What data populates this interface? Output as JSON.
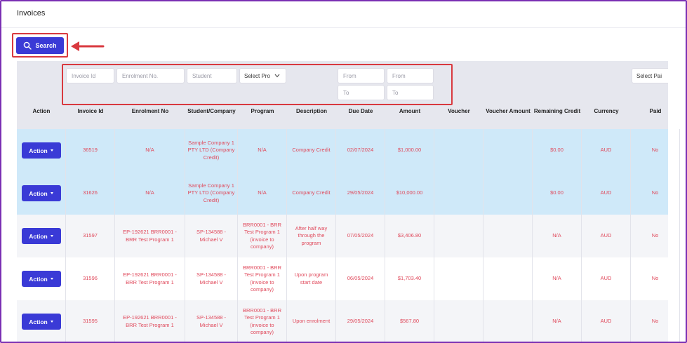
{
  "page": {
    "title": "Invoices"
  },
  "search": {
    "label": "Search"
  },
  "filters": {
    "invoice_id": "Invoice Id",
    "enrolment_no": "Enrolment No.",
    "student": "Student",
    "program": "Select Pro",
    "due_from": "From",
    "due_to": "To",
    "amount_from": "From",
    "amount_to": "To",
    "paid": "Select Pai"
  },
  "columns": [
    "Action",
    "Invoice Id",
    "Enrolment No",
    "Student/Company",
    "Program",
    "Description",
    "Due Date",
    "Amount",
    "Voucher",
    "Voucher Amount",
    "Remaining Credit",
    "Currency",
    "Paid"
  ],
  "rows": [
    {
      "action": "Action",
      "invoice_id": "36519",
      "enrolment_no": "N/A",
      "student": "Sample Company 1 PTY LTD (Company Credit)",
      "program": "N/A",
      "description": "Company Credit",
      "due_date": "02/07/2024",
      "amount": "$1,000.00",
      "voucher": "",
      "voucher_amount": "",
      "remaining_credit": "$0.00",
      "currency": "AUD",
      "paid": "No",
      "style": "blue"
    },
    {
      "action": "Action",
      "invoice_id": "31626",
      "enrolment_no": "N/A",
      "student": "Sample Company 1 PTY LTD (Company Credit)",
      "program": "N/A",
      "description": "Company Credit",
      "due_date": "29/05/2024",
      "amount": "$10,000.00",
      "voucher": "",
      "voucher_amount": "",
      "remaining_credit": "$0.00",
      "currency": "AUD",
      "paid": "No",
      "style": "blue"
    },
    {
      "action": "Action",
      "invoice_id": "31597",
      "enrolment_no": "EP-192621 BRR0001 - BRR Test Program 1",
      "student": "SP-134588 - Michael V",
      "program": "BRR0001 - BRR Test Program 1 (invoice to company)",
      "description": "After half way through the program",
      "due_date": "07/05/2024",
      "amount": "$3,406.80",
      "voucher": "",
      "voucher_amount": "",
      "remaining_credit": "N/A",
      "currency": "AUD",
      "paid": "No",
      "style": "gray"
    },
    {
      "action": "Action",
      "invoice_id": "31596",
      "enrolment_no": "EP-192621 BRR0001 - BRR Test Program 1",
      "student": "SP-134588 - Michael V",
      "program": "BRR0001 - BRR Test Program 1 (invoice to company)",
      "description": "Upon program start date",
      "due_date": "06/05/2024",
      "amount": "$1,703.40",
      "voucher": "",
      "voucher_amount": "",
      "remaining_credit": "N/A",
      "currency": "AUD",
      "paid": "No",
      "style": "white"
    },
    {
      "action": "Action",
      "invoice_id": "31595",
      "enrolment_no": "EP-192621 BRR0001 - BRR Test Program 1",
      "student": "SP-134588 - Michael V",
      "program": "BRR0001 - BRR Test Program 1 (invoice to company)",
      "description": "Upon enrolment",
      "due_date": "29/05/2024",
      "amount": "$567.80",
      "voucher": "",
      "voucher_amount": "",
      "remaining_credit": "N/A",
      "currency": "AUD",
      "paid": "No",
      "style": "gray"
    }
  ],
  "colors": {
    "primary": "#3a3ad6",
    "highlight": "#d9393f",
    "cell_text": "#e04a5c",
    "row_highlight": "#cfe9f9"
  }
}
